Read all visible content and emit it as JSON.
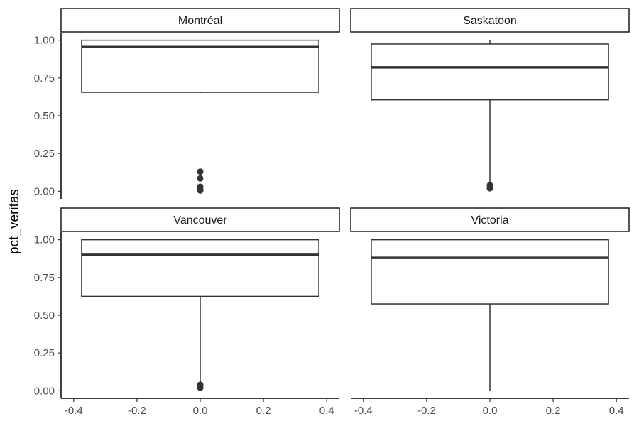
{
  "chart_data": {
    "type": "box",
    "ylabel": "pct_veritas",
    "xlabel": "",
    "xlim": [
      -0.4,
      0.4
    ],
    "ylim": [
      0,
      1
    ],
    "x_ticks": [
      "-0.4",
      "-0.2",
      "0.0",
      "0.2",
      "0.4"
    ],
    "y_ticks": [
      "0.00",
      "0.25",
      "0.50",
      "0.75",
      "1.00"
    ],
    "grid": false,
    "panels": [
      {
        "name": "Montréal",
        "x": 0,
        "box_width": 0.75,
        "lower_whisker": 0.65,
        "q1": 0.655,
        "median": 0.955,
        "q3": 1.0,
        "upper_whisker": 1.0,
        "outliers": [
          0.13,
          0.085,
          0.03,
          0.015,
          0.005
        ]
      },
      {
        "name": "Saskatoon",
        "x": 0,
        "box_width": 0.75,
        "lower_whisker": 0.05,
        "q1": 0.605,
        "median": 0.82,
        "q3": 0.975,
        "upper_whisker": 1.0,
        "outliers": [
          0.04,
          0.02
        ]
      },
      {
        "name": "Vancouver",
        "x": 0,
        "box_width": 0.75,
        "lower_whisker": 0.05,
        "q1": 0.625,
        "median": 0.9,
        "q3": 1.0,
        "upper_whisker": 1.0,
        "outliers": [
          0.04,
          0.02
        ]
      },
      {
        "name": "Victoria",
        "x": 0,
        "box_width": 0.75,
        "lower_whisker": 0.0,
        "q1": 0.575,
        "median": 0.88,
        "q3": 1.0,
        "upper_whisker": 1.0,
        "outliers": []
      }
    ]
  }
}
